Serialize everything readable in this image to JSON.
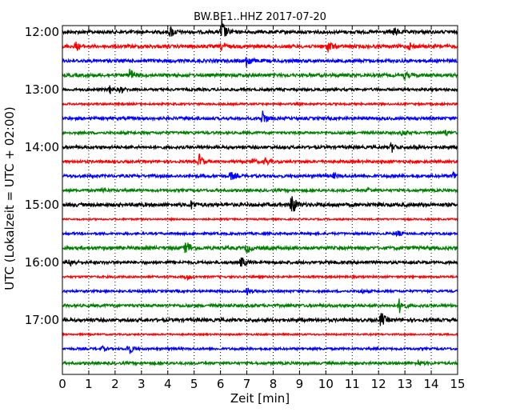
{
  "chart_data": {
    "type": "line",
    "title": "BW.BE1..HHZ 2017-07-20",
    "xlabel": "Zeit  [min]",
    "ylabel": "UTC (Lokalzeit = UTC + 02:00)",
    "xlim": [
      0,
      15
    ],
    "x_ticks": [
      "0",
      "1",
      "2",
      "3",
      "4",
      "5",
      "6",
      "7",
      "8",
      "9",
      "10",
      "11",
      "12",
      "13",
      "14",
      "15"
    ],
    "y_tick_labels": [
      "12:00",
      "13:00",
      "14:00",
      "15:00",
      "16:00",
      "17:00"
    ],
    "grid": "vertical dotted",
    "colors": [
      "#000000",
      "#ff0000",
      "#0000ff",
      "#008000"
    ],
    "traces": [
      {
        "label": "12:00",
        "color": "#000000",
        "amplitude": 2.0,
        "events": [
          {
            "t": 4.1,
            "a": 7
          },
          {
            "t": 6.05,
            "a": 16
          },
          {
            "t": 12.6,
            "a": 5
          }
        ]
      },
      {
        "label": "12:15",
        "color": "#ff0000",
        "amplitude": 2.0,
        "events": [
          {
            "t": 0.5,
            "a": 5
          },
          {
            "t": 6.05,
            "a": 6
          },
          {
            "t": 10.1,
            "a": 8
          },
          {
            "t": 13.2,
            "a": 4
          }
        ]
      },
      {
        "label": "12:30",
        "color": "#0000ff",
        "amplitude": 2.0,
        "events": [
          {
            "t": 7.0,
            "a": 9
          }
        ]
      },
      {
        "label": "12:45",
        "color": "#008000",
        "amplitude": 2.0,
        "events": [
          {
            "t": 2.55,
            "a": 10
          },
          {
            "t": 13.0,
            "a": 4
          }
        ]
      },
      {
        "label": "13:00",
        "color": "#000000",
        "amplitude": 1.6,
        "events": [
          {
            "t": 1.8,
            "a": 5
          },
          {
            "t": 2.2,
            "a": 4
          }
        ]
      },
      {
        "label": "13:15",
        "color": "#ff0000",
        "amplitude": 1.2,
        "events": []
      },
      {
        "label": "13:30",
        "color": "#0000ff",
        "amplitude": 1.8,
        "events": [
          {
            "t": 7.6,
            "a": 10
          }
        ]
      },
      {
        "label": "13:45",
        "color": "#008000",
        "amplitude": 1.6,
        "events": [
          {
            "t": 14.5,
            "a": 4
          },
          {
            "t": 12.9,
            "a": 3
          }
        ]
      },
      {
        "label": "14:00",
        "color": "#000000",
        "amplitude": 1.8,
        "events": [
          {
            "t": 12.5,
            "a": 6
          },
          {
            "t": 13.3,
            "a": 3
          }
        ]
      },
      {
        "label": "14:15",
        "color": "#ff0000",
        "amplitude": 1.6,
        "events": [
          {
            "t": 5.2,
            "a": 9
          },
          {
            "t": 7.7,
            "a": 5
          },
          {
            "t": 7.2,
            "a": 3
          }
        ]
      },
      {
        "label": "14:30",
        "color": "#0000ff",
        "amplitude": 1.8,
        "events": [
          {
            "t": 6.4,
            "a": 5
          },
          {
            "t": 14.85,
            "a": 6
          },
          {
            "t": 10.3,
            "a": 3
          }
        ]
      },
      {
        "label": "14:45",
        "color": "#008000",
        "amplitude": 1.6,
        "events": [
          {
            "t": 1.5,
            "a": 3
          },
          {
            "t": 11.6,
            "a": 3
          }
        ]
      },
      {
        "label": "15:00",
        "color": "#000000",
        "amplitude": 2.2,
        "events": [
          {
            "t": 4.9,
            "a": 5
          },
          {
            "t": 8.7,
            "a": 17
          }
        ]
      },
      {
        "label": "15:15",
        "color": "#ff0000",
        "amplitude": 1.0,
        "events": []
      },
      {
        "label": "15:30",
        "color": "#0000ff",
        "amplitude": 1.4,
        "events": [
          {
            "t": 12.7,
            "a": 4
          }
        ]
      },
      {
        "label": "15:45",
        "color": "#008000",
        "amplitude": 2.0,
        "events": [
          {
            "t": 4.7,
            "a": 11
          },
          {
            "t": 7.0,
            "a": 6
          }
        ]
      },
      {
        "label": "16:00",
        "color": "#000000",
        "amplitude": 1.8,
        "events": [
          {
            "t": 0.3,
            "a": 5
          },
          {
            "t": 6.8,
            "a": 7
          }
        ]
      },
      {
        "label": "16:15",
        "color": "#ff0000",
        "amplitude": 1.2,
        "events": [
          {
            "t": 4.7,
            "a": 4
          }
        ]
      },
      {
        "label": "16:30",
        "color": "#0000ff",
        "amplitude": 1.4,
        "events": [
          {
            "t": 7.0,
            "a": 5
          },
          {
            "t": 11.3,
            "a": 3
          }
        ]
      },
      {
        "label": "16:45",
        "color": "#008000",
        "amplitude": 1.8,
        "events": [
          {
            "t": 12.8,
            "a": 9
          }
        ]
      },
      {
        "label": "17:00",
        "color": "#000000",
        "amplitude": 2.0,
        "events": [
          {
            "t": 12.1,
            "a": 10
          }
        ]
      },
      {
        "label": "17:15",
        "color": "#ff0000",
        "amplitude": 1.0,
        "events": []
      },
      {
        "label": "17:30",
        "color": "#0000ff",
        "amplitude": 1.4,
        "events": [
          {
            "t": 2.5,
            "a": 9
          },
          {
            "t": 1.5,
            "a": 3
          }
        ]
      },
      {
        "label": "17:45",
        "color": "#008000",
        "amplitude": 1.6,
        "events": [
          {
            "t": 13.5,
            "a": 4
          }
        ]
      }
    ]
  }
}
